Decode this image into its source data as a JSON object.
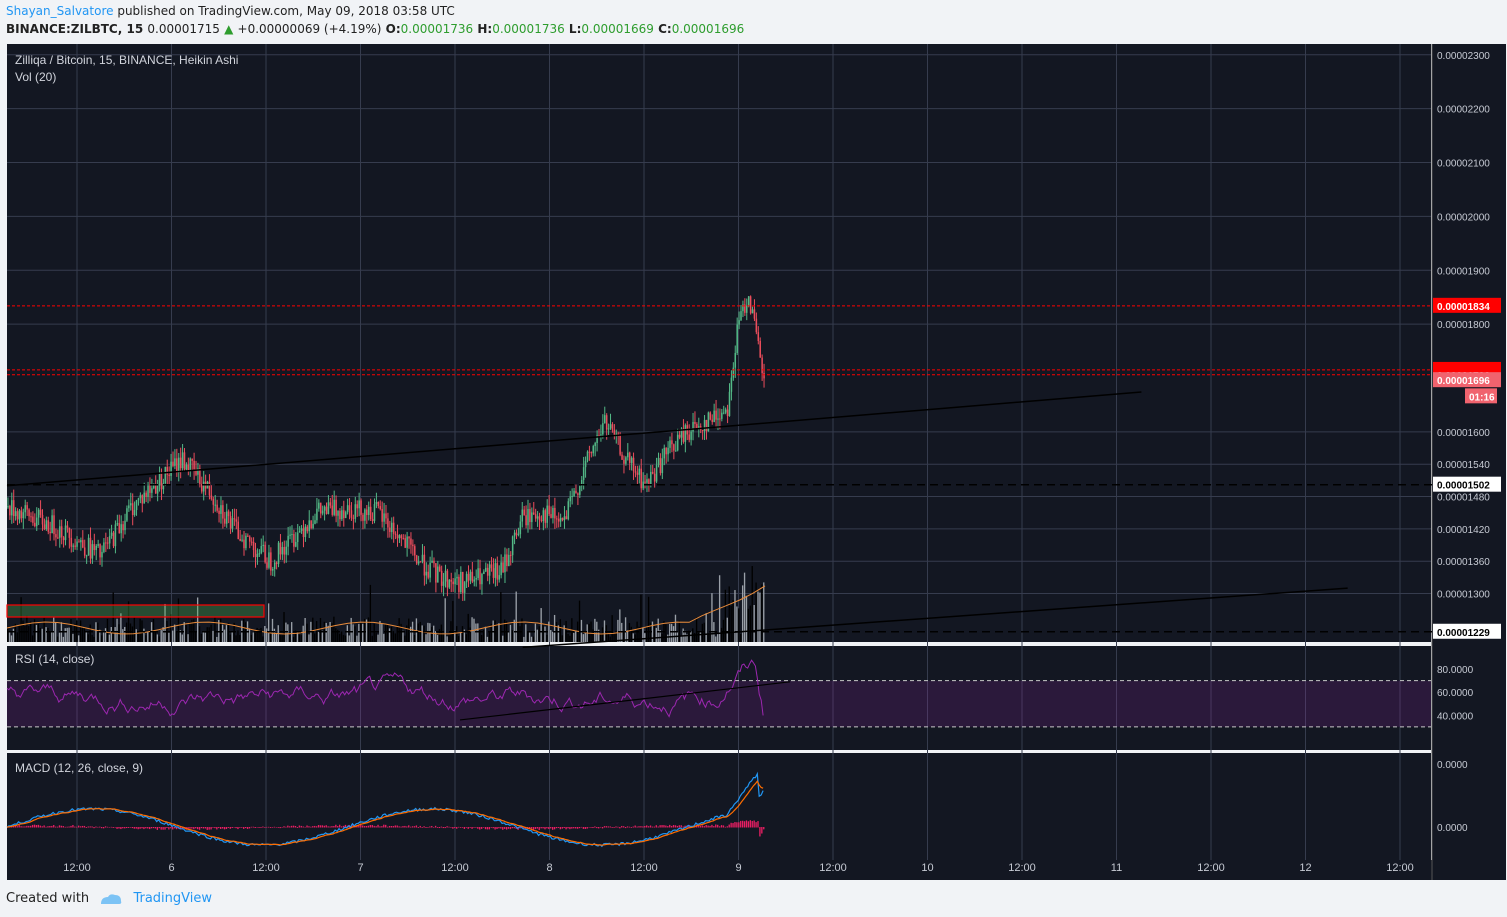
{
  "header": {
    "author": "Shayan_Salvatore",
    "published": "published on TradingView.com, May 09, 2018 03:58 UTC",
    "symbol_line": "BINANCE:ZILBTC, 15",
    "last": "0.00001715",
    "change": "+0.00000069 (+4.19%)",
    "o_label": "O:",
    "o_val": "0.00001736",
    "h_label": "H:",
    "h_val": "0.00001736",
    "l_label": "L:",
    "l_val": "0.00001669",
    "c_label": "C:",
    "c_val": "0.00001696"
  },
  "footer": {
    "created_with": "Created with",
    "brand": "TradingView"
  },
  "colors": {
    "background": "#131722",
    "grid": "#363c4e",
    "up": "#53b987",
    "down": "#eb4d5c",
    "level": "#ff0000",
    "rsi": "#9c27b0",
    "macd": "#2196f3",
    "signal": "#ff6d00",
    "hist": "#e91e63",
    "volume": "#9aa0a8",
    "vol_ma": "#e98b3a"
  },
  "chart_data": {
    "type": "candlestick",
    "title": "Zilliqa / Bitcoin, 15, BINANCE, Heikin Ashi",
    "volume_label": "Vol (20)",
    "y_ticks": [
      "0.00002300",
      "0.00002200",
      "0.00002100",
      "0.00002000",
      "0.00001900",
      "0.00001800",
      "0.00001600",
      "0.00001540",
      "0.00001480",
      "0.00001420",
      "0.00001360",
      "0.00001300"
    ],
    "y_range": [
      1.21e-05,
      2.32e-05
    ],
    "price_labels": [
      {
        "text": "0.00001834",
        "value": 1.834e-05,
        "style": "red"
      },
      {
        "text": "0.00001715",
        "value": 1.715e-05,
        "style": "red"
      },
      {
        "text": "0.00001706",
        "value": 1.706e-05,
        "style": "red"
      },
      {
        "text": "0.00001696",
        "value": 1.696e-05,
        "style": "pink"
      },
      {
        "text": "01:16",
        "value": 1.666e-05,
        "style": "pink"
      },
      {
        "text": "0.00001502",
        "value": 1.502e-05,
        "style": "white"
      },
      {
        "text": "0.00001229",
        "value": 1.229e-05,
        "style": "white"
      }
    ],
    "x_ticks": [
      "12:00",
      "6",
      "12:00",
      "7",
      "12:00",
      "8",
      "12:00",
      "9",
      "12:00",
      "10",
      "12:00",
      "11",
      "12:00",
      "12",
      "12:00"
    ],
    "price_path": [
      [
        0,
        1.46e-05
      ],
      [
        0.05,
        1.42e-05
      ],
      [
        0.09,
        1.37e-05
      ],
      [
        0.12,
        1.46e-05
      ],
      [
        0.17,
        1.55e-05
      ],
      [
        0.2,
        1.48e-05
      ],
      [
        0.22,
        1.42e-05
      ],
      [
        0.255,
        1.36e-05
      ],
      [
        0.3,
        1.45e-05
      ],
      [
        0.33,
        1.46e-05
      ],
      [
        0.36,
        1.45e-05
      ],
      [
        0.4,
        1.36e-05
      ],
      [
        0.42,
        1.33e-05
      ],
      [
        0.44,
        1.32e-05
      ],
      [
        0.46,
        1.33e-05
      ],
      [
        0.48,
        1.34e-05
      ],
      [
        0.5,
        1.44e-05
      ],
      [
        0.52,
        1.45e-05
      ],
      [
        0.54,
        1.43e-05
      ],
      [
        0.56,
        1.53e-05
      ],
      [
        0.58,
        1.62e-05
      ],
      [
        0.6,
        1.55e-05
      ],
      [
        0.62,
        1.5e-05
      ],
      [
        0.64,
        1.56e-05
      ],
      [
        0.66,
        1.6e-05
      ],
      [
        0.69,
        1.63e-05
      ],
      [
        0.7,
        1.65e-05
      ],
      [
        0.71,
        1.8e-05
      ],
      [
        0.72,
        1.86e-05
      ],
      [
        0.735,
        1.69e-05
      ]
    ],
    "levels": [
      1.834e-05,
      1.715e-05,
      1.706e-05
    ],
    "dashed_levels": [
      1.502e-05,
      1.229e-05
    ],
    "trendlines": [
      {
        "from": [
          0,
          1.5e-05
        ],
        "to": [
          1.1,
          1.674e-05
        ]
      },
      {
        "from": [
          0.5,
          1.2e-05
        ],
        "to": [
          1.3,
          1.31e-05
        ]
      }
    ],
    "rsi": {
      "label": "RSI (14, close)",
      "ticks": [
        "80.0000",
        "60.0000",
        "40.0000"
      ],
      "bands": [
        70,
        30
      ]
    },
    "macd": {
      "label": "MACD (12, 26, close, 9)",
      "ticks": [
        "0.0000",
        "0.0000"
      ]
    }
  }
}
